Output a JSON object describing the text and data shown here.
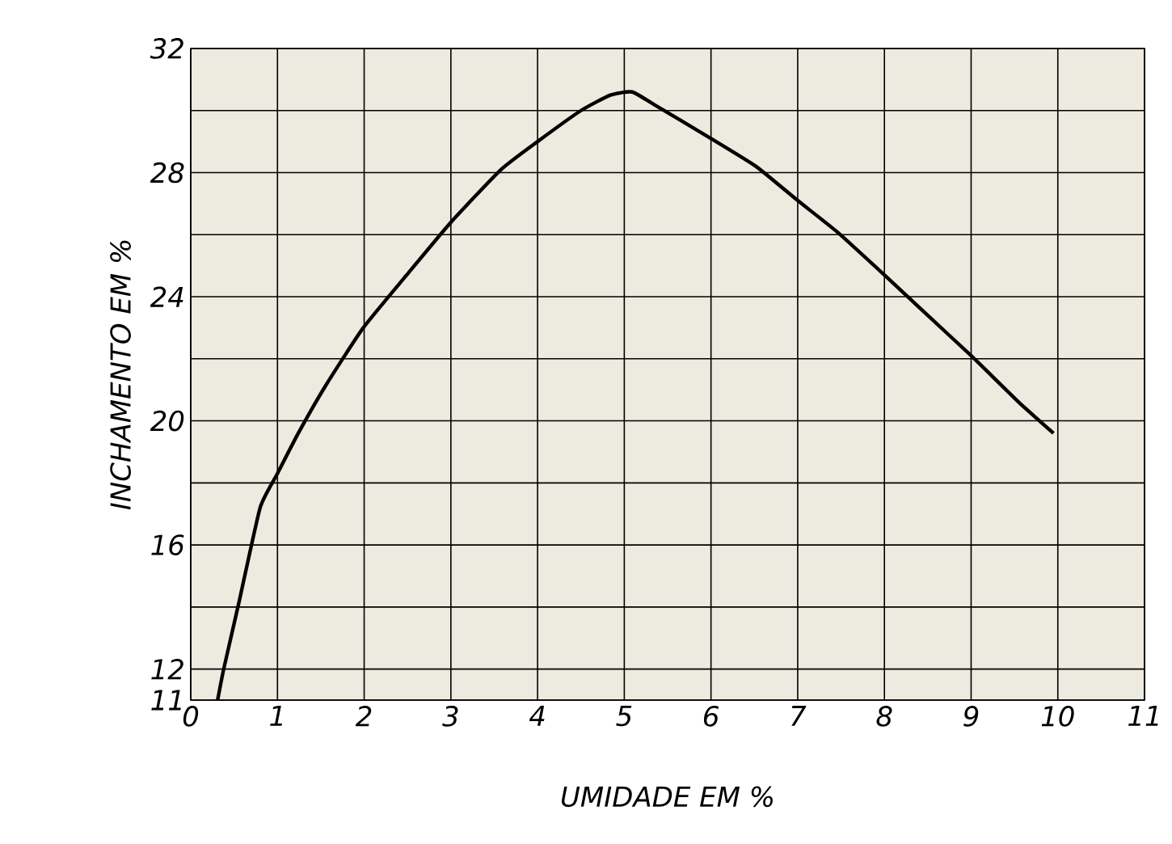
{
  "chart_data": {
    "type": "line",
    "xlabel": "UMIDADE EM %",
    "ylabel": "INCHAMENTO EM %",
    "color": "#000000",
    "grid": true,
    "x": [
      0.31,
      0.38,
      0.56,
      0.8,
      1.0,
      1.24,
      1.57,
      1.99,
      2.49,
      3.0,
      3.58,
      4.0,
      4.5,
      4.84,
      5.09,
      5.34,
      6.0,
      6.52,
      7.0,
      7.45,
      8.0,
      8.46,
      9.0,
      9.55,
      9.95
    ],
    "values": [
      11,
      12,
      14.2,
      17.2,
      18.3,
      19.6,
      21.2,
      23.0,
      24.7,
      26.4,
      28.1,
      29.0,
      30.0,
      30.5,
      30.6,
      30.2,
      29.1,
      28.2,
      27.1,
      26.1,
      24.7,
      23.5,
      22.1,
      20.6,
      19.6
    ],
    "xlim": [
      0,
      11
    ],
    "xticks": [
      0,
      1,
      2,
      3,
      4,
      5,
      6,
      7,
      8,
      9,
      10,
      11
    ],
    "ylim": [
      11,
      32
    ],
    "yticks": [
      11,
      12,
      {
        "value": 14,
        "label": null
      },
      16,
      {
        "value": 18,
        "label": null
      },
      20,
      {
        "value": 22,
        "label": null
      },
      24,
      {
        "value": 26,
        "label": null
      },
      28,
      {
        "value": 30,
        "label": null
      },
      32
    ]
  }
}
